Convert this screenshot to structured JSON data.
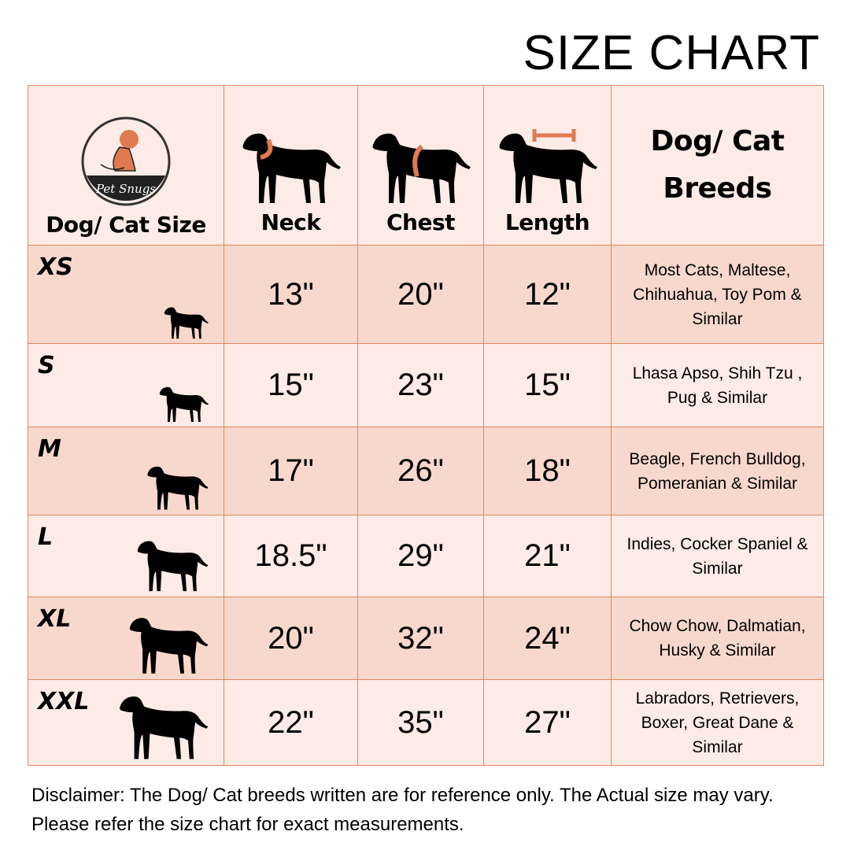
{
  "title": "SIZE CHART",
  "brand": "Pet Snugs",
  "colors": {
    "accent": "#e07a50",
    "header_bg": "#fcebe6",
    "row_dark": "#f8d8cd",
    "row_light": "#fcebe6"
  },
  "headers": [
    "Dog/ Cat Size",
    "Neck",
    "Chest",
    "Length",
    "Dog/ Cat Breeds"
  ],
  "rows": [
    {
      "size": "XS",
      "neck": "13\"",
      "chest": "20\"",
      "length": "12\"",
      "breeds": "Most Cats, Maltese, Chihuahua, Toy Pom & Similar"
    },
    {
      "size": "S",
      "neck": "15\"",
      "chest": "23\"",
      "length": "15\"",
      "breeds": "Lhasa Apso, Shih Tzu , Pug & Similar"
    },
    {
      "size": "M",
      "neck": "17\"",
      "chest": "26\"",
      "length": "18\"",
      "breeds": "Beagle, French Bulldog, Pomeranian & Similar"
    },
    {
      "size": "L",
      "neck": "18.5\"",
      "chest": "29\"",
      "length": "21\"",
      "breeds": "Indies, Cocker Spaniel & Similar"
    },
    {
      "size": "XL",
      "neck": "20\"",
      "chest": "32\"",
      "length": "24\"",
      "breeds": "Chow Chow, Dalmatian, Husky & Similar"
    },
    {
      "size": "XXL",
      "neck": "22\"",
      "chest": "35\"",
      "length": "27\"",
      "breeds": "Labradors, Retrievers, Boxer, Great Dane & Similar"
    }
  ],
  "disclaimer": "Disclaimer: The Dog/ Cat breeds written are for reference only. The Actual size may vary. Please refer the size chart for exact measurements."
}
